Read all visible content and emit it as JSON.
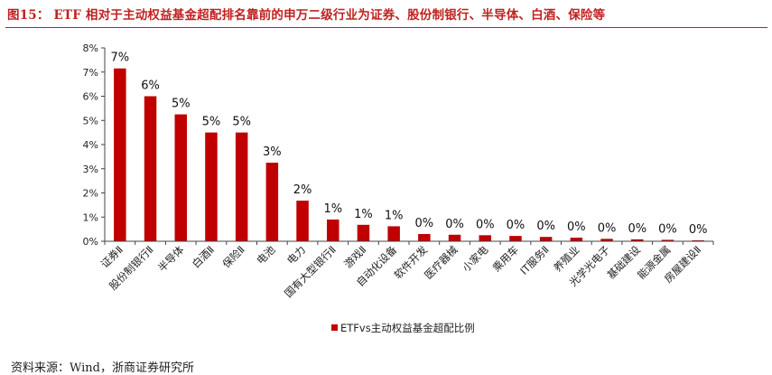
{
  "header": {
    "title": "图15： ETF 相对于主动权益基金超配排名靠前的申万二级行业为证券、股份制银行、半导体、白酒、保险等"
  },
  "footer": {
    "source": "资料来源：Wind，浙商证券研究所"
  },
  "chart_data": {
    "type": "bar",
    "title": "",
    "xlabel": "",
    "ylabel": "",
    "ylim": [
      0,
      8
    ],
    "yticks": [
      "0%",
      "1%",
      "2%",
      "3%",
      "4%",
      "5%",
      "6%",
      "7%",
      "8%"
    ],
    "grid": false,
    "legend_position": "bottom",
    "color": "#c00000",
    "categories": [
      "证券Ⅱ",
      "股份制银行Ⅱ",
      "半导体",
      "白酒Ⅱ",
      "保险Ⅱ",
      "电池",
      "电力",
      "国有大型银行Ⅱ",
      "游戏Ⅱ",
      "自动化设备",
      "软件开发",
      "医疗器械",
      "小家电",
      "乘用车",
      "IT服务Ⅱ",
      "养殖业",
      "光学光电子",
      "基础建设",
      "能源金属",
      "房屋建设Ⅱ"
    ],
    "series": [
      {
        "name": "ETFvs主动权益基金超配比例",
        "values": [
          7.15,
          6.0,
          5.25,
          4.5,
          4.5,
          3.25,
          1.68,
          0.9,
          0.68,
          0.62,
          0.3,
          0.27,
          0.25,
          0.22,
          0.18,
          0.15,
          0.1,
          0.08,
          0.06,
          0.04
        ],
        "data_labels": [
          "7%",
          "6%",
          "5%",
          "5%",
          "5%",
          "3%",
          "2%",
          "1%",
          "1%",
          "1%",
          "0%",
          "0%",
          "0%",
          "0%",
          "0%",
          "0%",
          "0%",
          "0%",
          "0%",
          "0%"
        ]
      }
    ]
  }
}
